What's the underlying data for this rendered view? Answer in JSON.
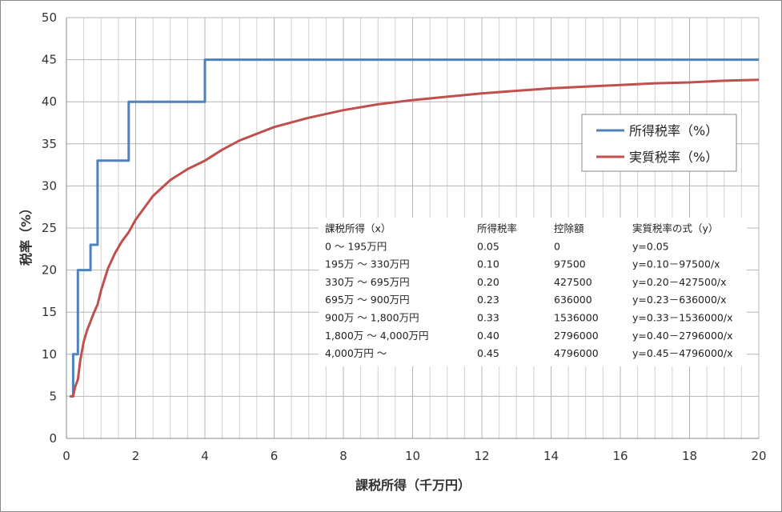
{
  "chart_data": {
    "type": "line",
    "xlabel": "課税所得（千万円）",
    "ylabel": "税率（%）",
    "xlim": [
      0,
      20
    ],
    "ylim": [
      0,
      50
    ],
    "x_ticks": [
      "0",
      "2",
      "4",
      "6",
      "8",
      "10",
      "12",
      "14",
      "16",
      "18",
      "20"
    ],
    "y_ticks": [
      "0",
      "5",
      "10",
      "15",
      "20",
      "25",
      "30",
      "35",
      "40",
      "45",
      "50"
    ],
    "grid": true,
    "legend_position": "right",
    "series": [
      {
        "name": "所得税率（%）",
        "color": "#4f81bd",
        "shape": "step",
        "x": [
          0.1,
          0.195,
          0.195,
          0.33,
          0.33,
          0.695,
          0.695,
          0.9,
          0.9,
          1.8,
          1.8,
          4.0,
          4.0,
          20
        ],
        "y": [
          5,
          5,
          10,
          10,
          20,
          20,
          23,
          23,
          33,
          33,
          40,
          40,
          45,
          45
        ]
      },
      {
        "name": "実質税率（%）",
        "color": "#c0504d",
        "shape": "line",
        "x": [
          0.1,
          0.195,
          0.25,
          0.33,
          0.4,
          0.5,
          0.6,
          0.695,
          0.8,
          0.9,
          1.0,
          1.2,
          1.4,
          1.6,
          1.8,
          2.0,
          2.5,
          3.0,
          3.5,
          4.0,
          4.5,
          5.0,
          6.0,
          7.0,
          8.0,
          9.0,
          10.0,
          11.0,
          12.0,
          13.0,
          14.0,
          15.0,
          16.0,
          17.0,
          18.0,
          19.0,
          20.0
        ],
        "y": [
          5,
          5,
          6.1,
          7.0,
          9.3,
          11.5,
          12.9,
          13.9,
          15.0,
          15.9,
          17.6,
          20.2,
          22.0,
          23.4,
          24.5,
          26.0,
          28.8,
          30.7,
          32.0,
          33.0,
          34.3,
          35.4,
          37.0,
          38.1,
          39.0,
          39.7,
          40.2,
          40.6,
          41.0,
          41.3,
          41.6,
          41.8,
          42.0,
          42.2,
          42.3,
          42.5,
          42.6
        ]
      }
    ],
    "table": {
      "headers": [
        "課税所得（x）",
        "所得税率",
        "控除額",
        "実質税率の式（y）"
      ],
      "rows": [
        [
          "0 ～ 195万円",
          "0.05",
          "0",
          "y=0.05"
        ],
        [
          "195万 ～ 330万円",
          "0.10",
          "97500",
          "y=0.10－97500/x"
        ],
        [
          "330万 ～ 695万円",
          "0.20",
          "427500",
          "y=0.20－427500/x"
        ],
        [
          "695万 ～ 900万円",
          "0.23",
          "636000",
          "y=0.23－636000/x"
        ],
        [
          "900万 ～ 1,800万円",
          "0.33",
          "1536000",
          "y=0.33－1536000/x"
        ],
        [
          "1,800万 ～ 4,000万円",
          "0.40",
          "2796000",
          "y=0.40－2796000/x"
        ],
        [
          "4,000万円 ～",
          "0.45",
          "4796000",
          "y=0.45－4796000/x"
        ]
      ]
    }
  }
}
